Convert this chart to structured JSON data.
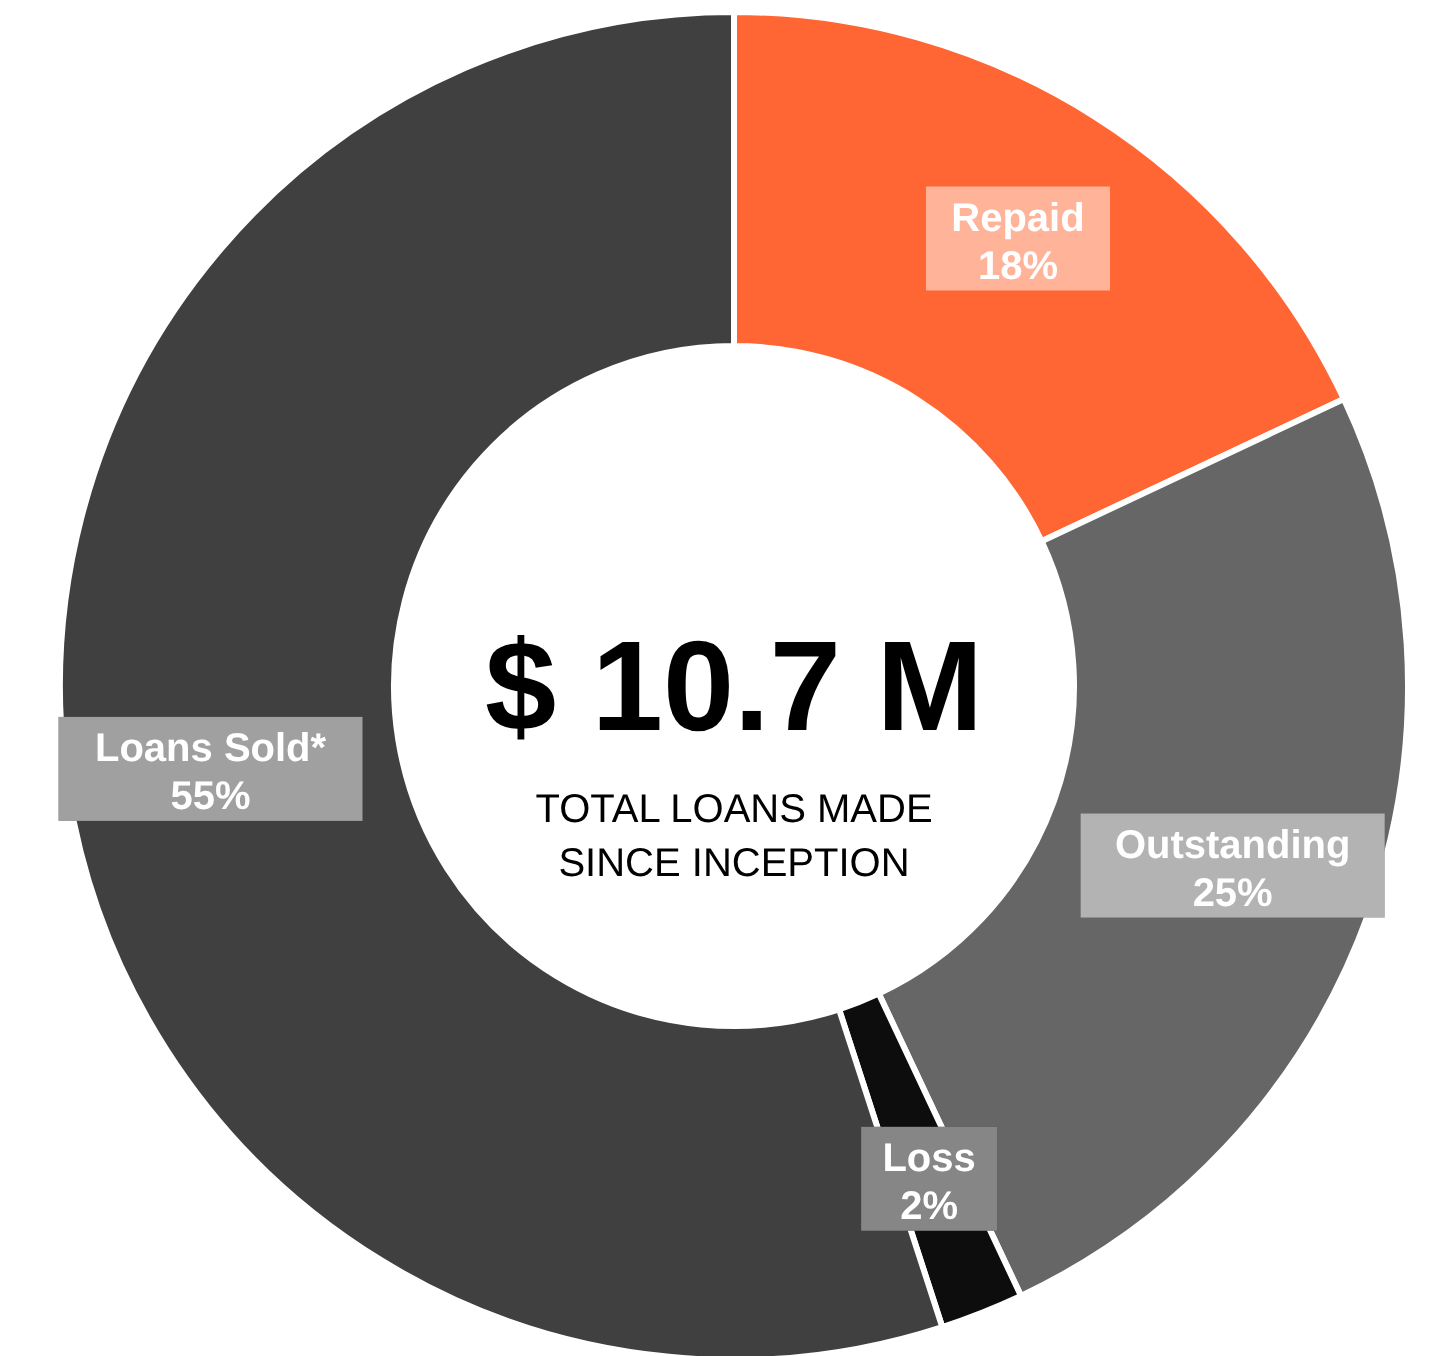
{
  "chart_data": {
    "type": "donut",
    "categories": [
      "Repaid",
      "Outstanding",
      "Loss",
      "Loans Sold*"
    ],
    "values": [
      18,
      25,
      2,
      55
    ],
    "colors": [
      "#ff6633",
      "#666666",
      "#0d0d0d",
      "#404040"
    ],
    "value_labels": [
      "18%",
      "25%",
      "2%",
      "55%"
    ],
    "annotations": [
      "$ 10.7 M",
      "TOTAL LOANS MADE\nSINCE INCEPTION"
    ]
  }
}
